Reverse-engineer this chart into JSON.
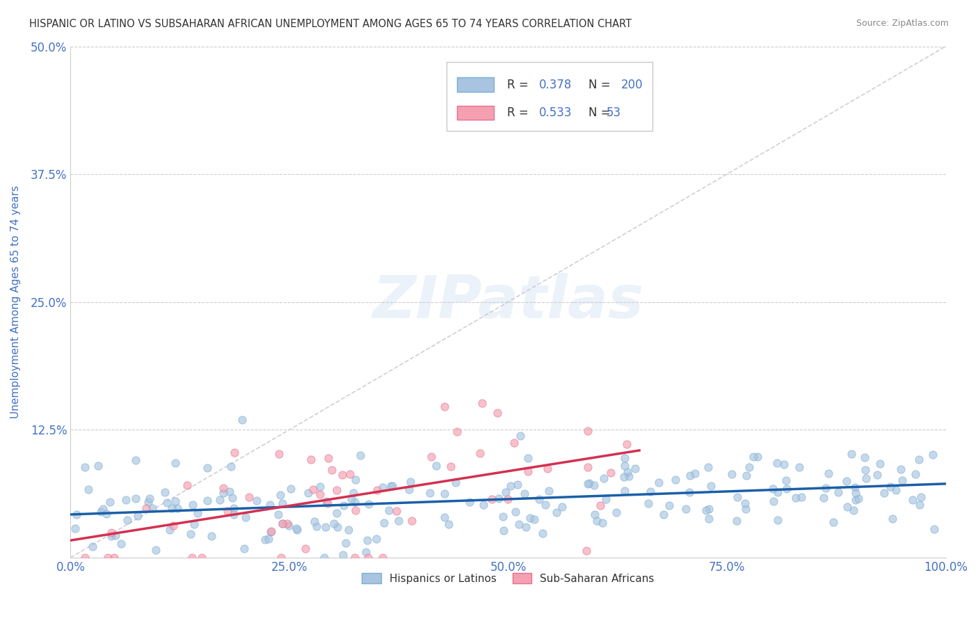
{
  "title": "HISPANIC OR LATINO VS SUBSAHARAN AFRICAN UNEMPLOYMENT AMONG AGES 65 TO 74 YEARS CORRELATION CHART",
  "source": "Source: ZipAtlas.com",
  "ylabel": "Unemployment Among Ages 65 to 74 years",
  "xlim": [
    0,
    100
  ],
  "ylim": [
    0,
    50
  ],
  "xticks": [
    0,
    25,
    50,
    75,
    100
  ],
  "xtick_labels": [
    "0.0%",
    "25.0%",
    "50.0%",
    "75.0%",
    "100.0%"
  ],
  "yticks": [
    0,
    12.5,
    25.0,
    37.5,
    50.0
  ],
  "ytick_labels": [
    "",
    "12.5%",
    "25.0%",
    "37.5%",
    "50.0%"
  ],
  "legend_entries": [
    "Hispanics or Latinos",
    "Sub-Saharan Africans"
  ],
  "R_blue": 0.378,
  "N_blue": 200,
  "R_pink": 0.533,
  "N_pink": 53,
  "blue_scatter_face": "#a8c4e0",
  "blue_scatter_edge": "#7aafd4",
  "pink_scatter_face": "#f4a0b0",
  "pink_scatter_edge": "#e87090",
  "trend_blue_color": "#1a5fa8",
  "trend_pink_color": "#d43050",
  "ref_line_color": "#c8c0d0",
  "watermark": "ZIPatlas",
  "background_color": "#ffffff",
  "grid_color": "#cccccc",
  "title_color": "#333333",
  "axis_label_color": "#4472c4",
  "tick_color": "#4472c4",
  "legend_R_N_color": "#4472c4",
  "legend_text_color": "#333333",
  "seed_blue": 42,
  "seed_pink": 7
}
